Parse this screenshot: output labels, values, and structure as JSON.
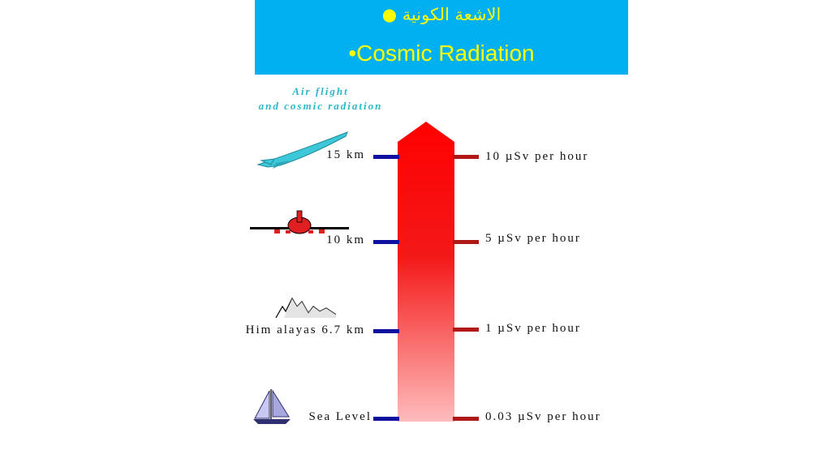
{
  "header": {
    "title_arabic": "الاشعة الكونية ●",
    "title_english": "•Cosmic Radiation",
    "background_color": "#00b0f0",
    "text_color": "#ffff00"
  },
  "diagram": {
    "subtitle_line1": "Air flight",
    "subtitle_line2": "and cosmic radiation",
    "arrow_color_top": "#ff0000",
    "arrow_color_bottom": "#ffbcbc",
    "levels": [
      {
        "id": "jet",
        "altitude": "15 km",
        "dose": "10 µSv per hour",
        "icon": "supersonic-jet-icon"
      },
      {
        "id": "airliner",
        "altitude": "10 km",
        "dose": "5 µSv per hour",
        "icon": "airliner-icon"
      },
      {
        "id": "himalayas",
        "altitude": "Him alayas 6.7 km",
        "dose": "1 µSv per hour",
        "icon": "mountain-icon"
      },
      {
        "id": "sea",
        "altitude": "Sea Level",
        "dose": "0.03 µSv per hour",
        "icon": "sailboat-icon"
      }
    ]
  }
}
